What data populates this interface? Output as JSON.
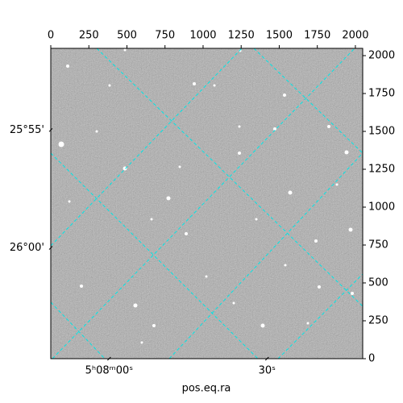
{
  "chart_data": {
    "type": "image",
    "xlabel": "pos.eq.ra",
    "xlim": [
      0,
      2048
    ],
    "ylim": [
      0,
      2048
    ],
    "xticks": [
      0,
      250,
      500,
      750,
      1000,
      1250,
      1500,
      1750,
      2000
    ],
    "yticks": [
      0,
      250,
      500,
      750,
      1000,
      1250,
      1500,
      1750,
      2000
    ],
    "world_xticks": [
      {
        "value": 383,
        "label": "5ʰ08ᵐ00ˢ"
      },
      {
        "value": 1420,
        "label": "30ˢ"
      }
    ],
    "world_yticks": [
      {
        "value": 1509,
        "label": "25°55'"
      },
      {
        "value": 731,
        "label": "26°00'"
      }
    ]
  }
}
